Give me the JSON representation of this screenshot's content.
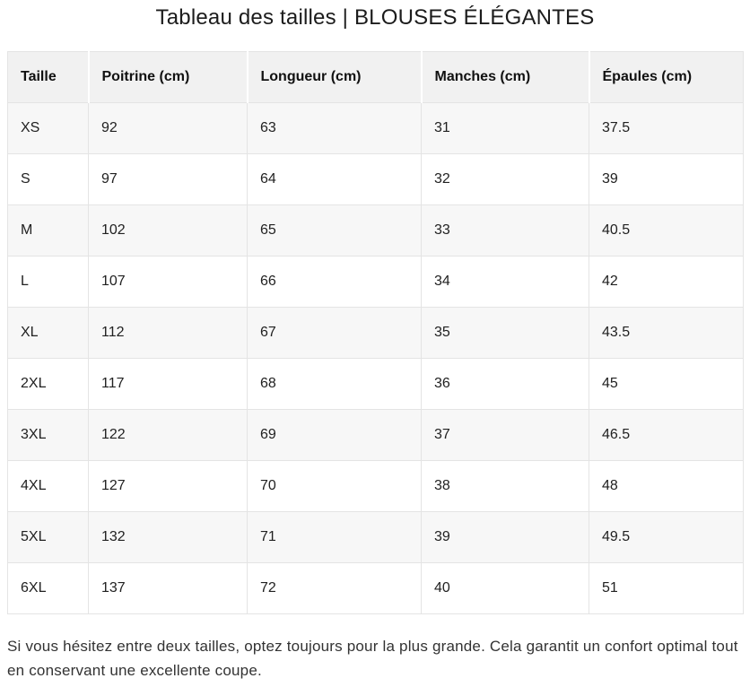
{
  "title": "Tableau des tailles | BLOUSES ÉLÉGANTES",
  "table": {
    "columns": [
      "Taille",
      "Poitrine (cm)",
      "Longueur (cm)",
      "Manches (cm)",
      "Épaules (cm)"
    ],
    "rows": [
      [
        "XS",
        "92",
        "63",
        "31",
        "37.5"
      ],
      [
        "S",
        "97",
        "64",
        "32",
        "39"
      ],
      [
        "M",
        "102",
        "65",
        "33",
        "40.5"
      ],
      [
        "L",
        "107",
        "66",
        "34",
        "42"
      ],
      [
        "XL",
        "112",
        "67",
        "35",
        "43.5"
      ],
      [
        "2XL",
        "117",
        "68",
        "36",
        "45"
      ],
      [
        "3XL",
        "122",
        "69",
        "37",
        "46.5"
      ],
      [
        "4XL",
        "127",
        "70",
        "38",
        "48"
      ],
      [
        "5XL",
        "132",
        "71",
        "39",
        "49.5"
      ],
      [
        "6XL",
        "137",
        "72",
        "40",
        "51"
      ]
    ]
  },
  "footer": {
    "note": "Si vous hésitez entre deux tailles, optez toujours pour la plus grande. Cela garantit un confort optimal tout en conservant une excellente coupe."
  },
  "colors": {
    "header_bg": "#f1f1f1",
    "stripe_bg": "#f7f7f7",
    "border": "#e4e4e4",
    "title_text": "#1c1c1c",
    "body_text": "#333333"
  }
}
